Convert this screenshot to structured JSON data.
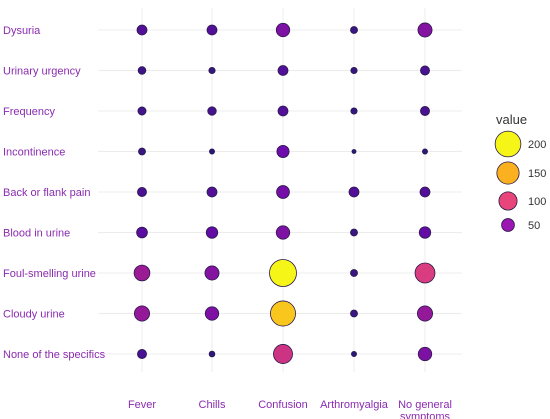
{
  "chart_data": {
    "type": "scatter",
    "categories_y": [
      "Dysuria",
      "Urinary urgency",
      "Frequency",
      "Incontinence",
      "Back or flank pain",
      "Blood in urine",
      "Foul-smelling urine",
      "Cloudy urine",
      "None of the specifics"
    ],
    "categories_x": [
      "Fever",
      "Chills",
      "Confusion",
      "Arthromyalgia",
      [
        "No general",
        "symptoms"
      ]
    ],
    "values": [
      [
        30,
        30,
        55,
        15,
        60
      ],
      [
        18,
        12,
        30,
        12,
        25
      ],
      [
        20,
        22,
        30,
        12,
        25
      ],
      [
        15,
        8,
        45,
        5,
        8
      ],
      [
        25,
        30,
        50,
        30,
        30
      ],
      [
        35,
        40,
        55,
        15,
        40
      ],
      [
        75,
        60,
        220,
        15,
        120
      ],
      [
        70,
        55,
        190,
        15,
        70
      ],
      [
        25,
        10,
        110,
        8,
        55
      ]
    ],
    "legend": {
      "title": "value",
      "entries": [
        {
          "label": "200",
          "value": 200,
          "color": "#f5f518"
        },
        {
          "label": "150",
          "value": 150,
          "color": "#fbb020"
        },
        {
          "label": "100",
          "value": 100,
          "color": "#e8467a"
        },
        {
          "label": "50",
          "value": 50,
          "color": "#9a17b2"
        }
      ]
    },
    "color_scale": [
      "#1e1b6e",
      "#6a0bab",
      "#b0228c",
      "#e8467a",
      "#fbb020",
      "#f5f518"
    ],
    "value_range": [
      0,
      220
    ],
    "grid": true,
    "legend_position": "right"
  }
}
